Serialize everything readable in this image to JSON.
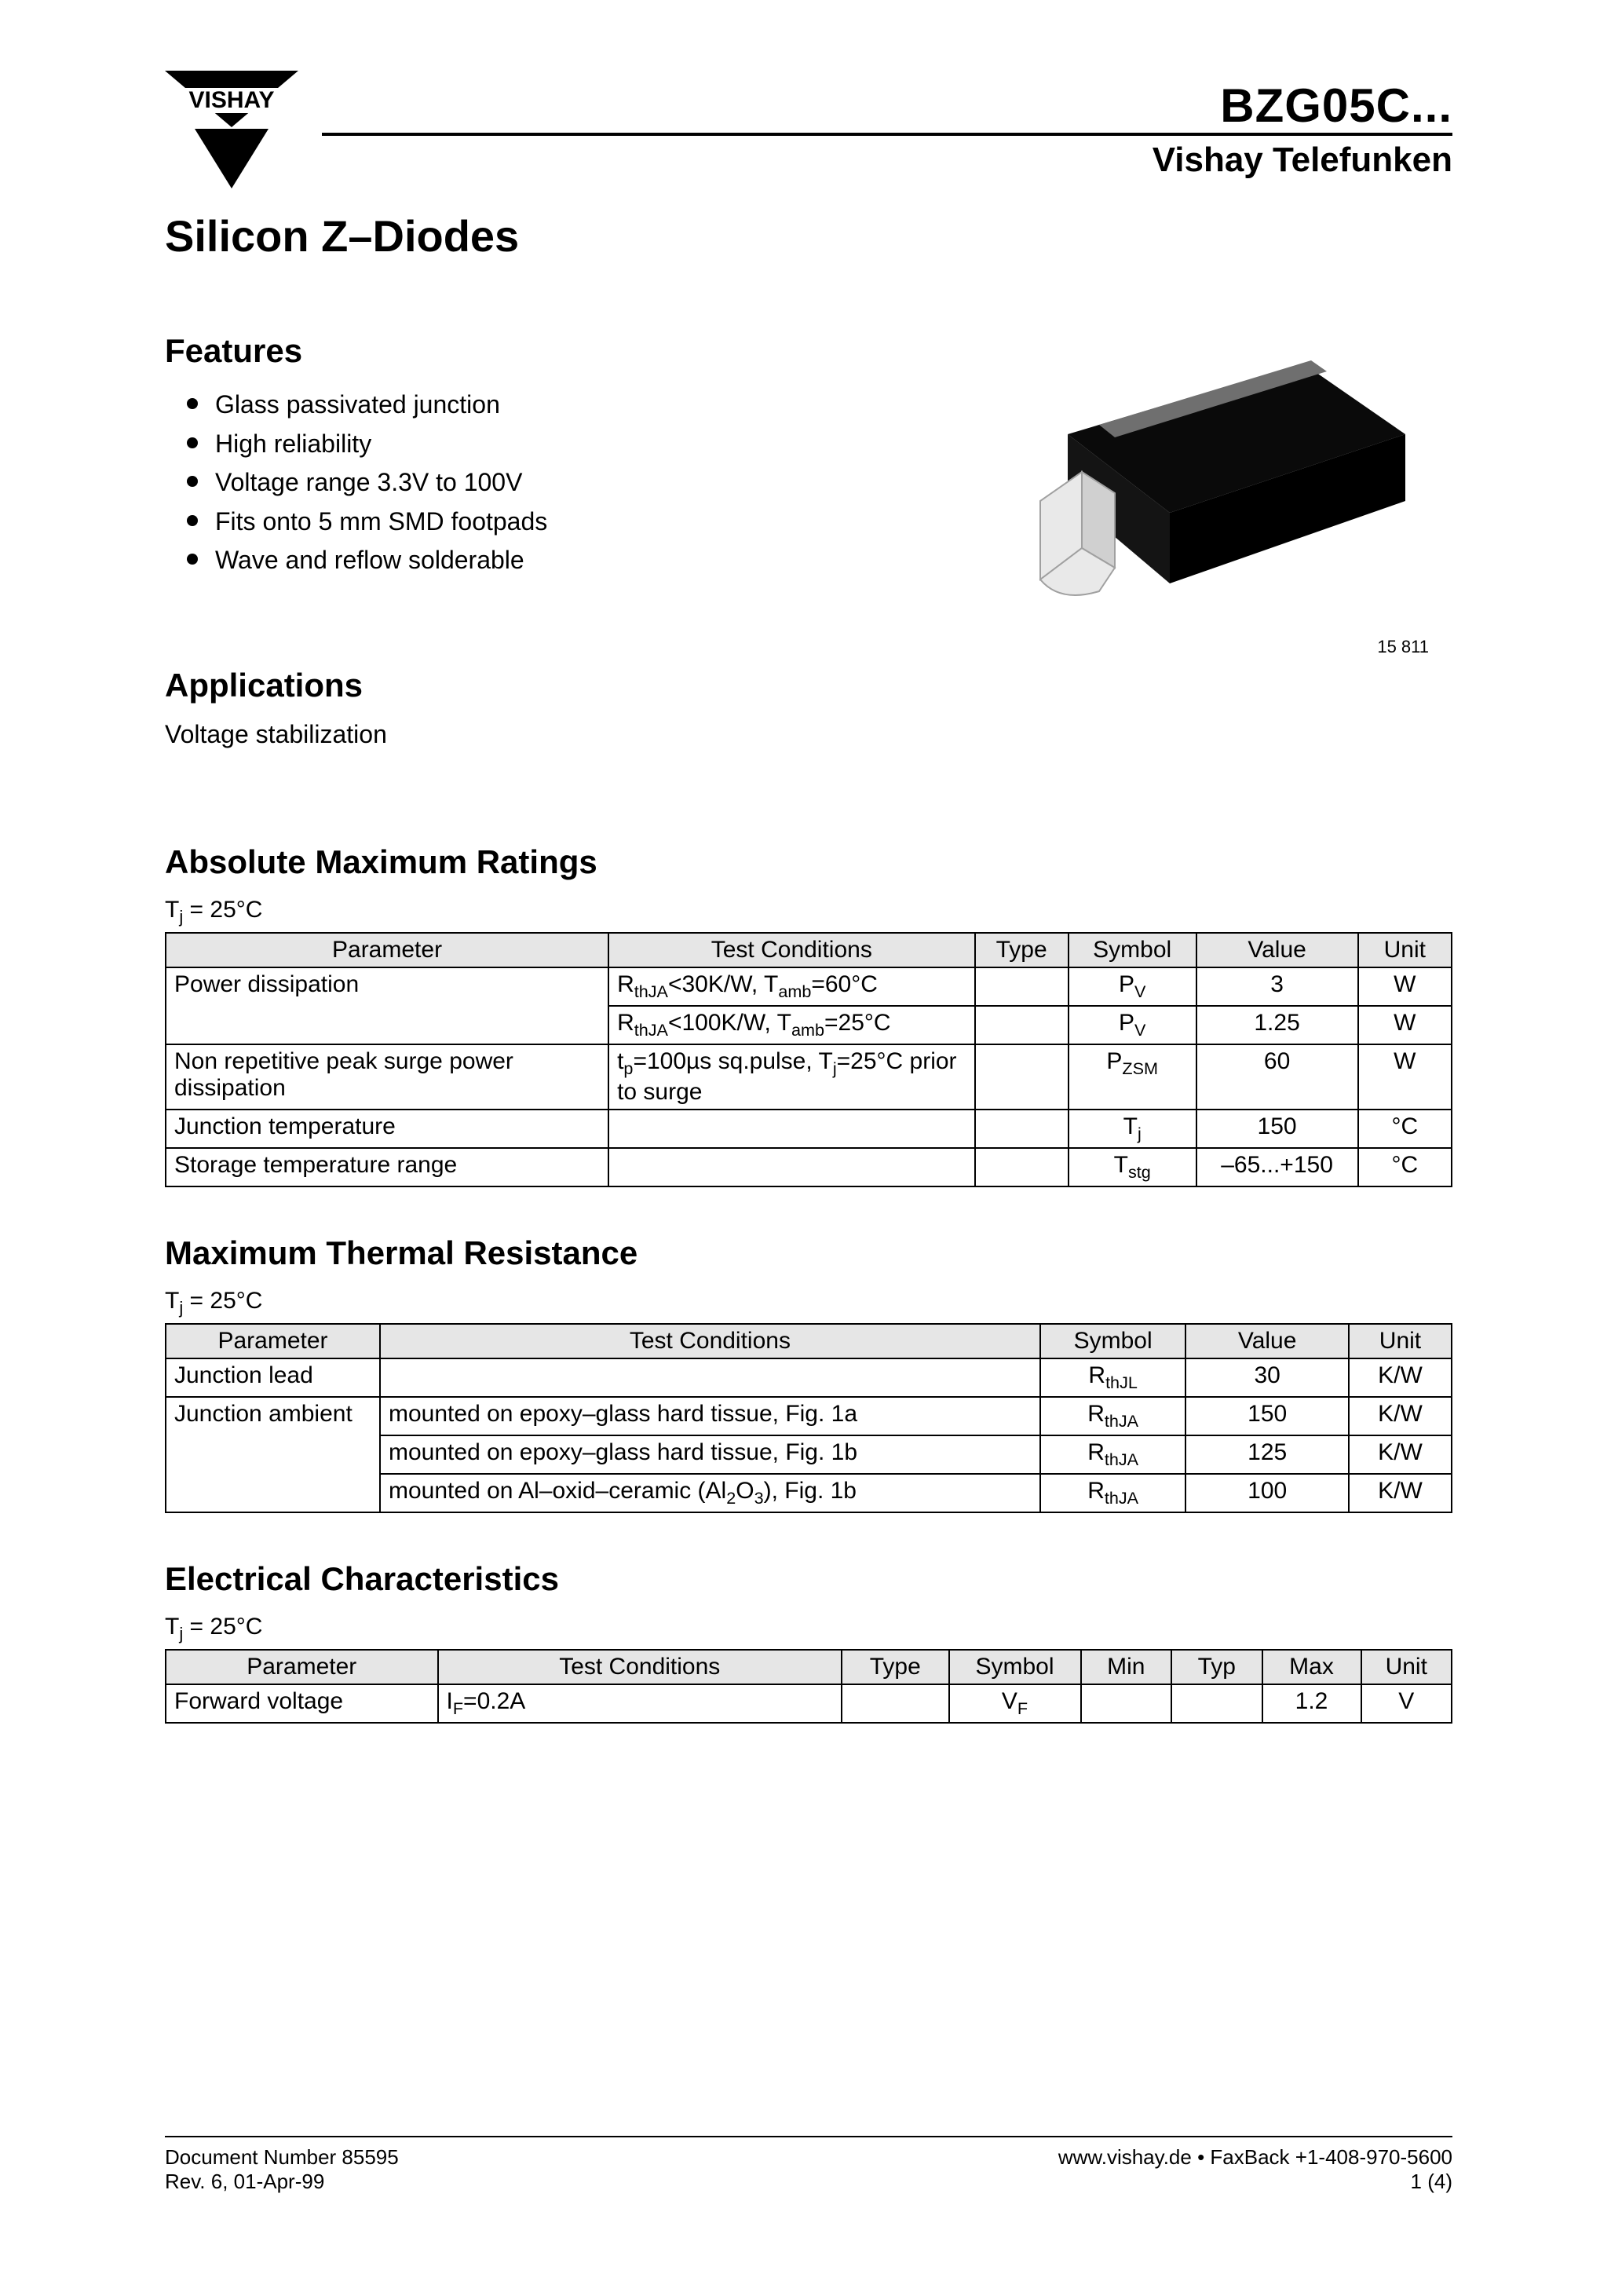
{
  "header": {
    "logo_text": "VISHAY",
    "part_number": "BZG05C...",
    "company": "Vishay Telefunken",
    "main_title": "Silicon Z–Diodes"
  },
  "package_image": {
    "id_text": "15 811",
    "body_color": "#0a0a0a",
    "band_color": "#6f6f6f",
    "lead_color": "#e9e9e9",
    "lead_edge": "#a0a0a0"
  },
  "features": {
    "heading": "Features",
    "items": [
      "Glass passivated junction",
      "High reliability",
      "Voltage range 3.3V to 100V",
      "Fits onto 5 mm SMD footpads",
      "Wave and reflow solderable"
    ]
  },
  "applications": {
    "heading": "Applications",
    "text": "Voltage stabilization"
  },
  "abs_max": {
    "heading": "Absolute Maximum Ratings",
    "condition_html": "T<span class=\"sub\">j</span> = 25°C",
    "columns": [
      "Parameter",
      "Test Conditions",
      "Type",
      "Symbol",
      "Value",
      "Unit"
    ],
    "rows": [
      {
        "param": "Power dissipation",
        "cond_html": "R<span class=\"sub\">thJA</span>&lt;30K/W, T<span class=\"sub\">amb</span>=60<span class=\"deg\"></span>C",
        "type": "",
        "sym_html": "P<span class=\"sub\">V</span>",
        "value": "3",
        "unit": "W",
        "param_rowspan": 2
      },
      {
        "param": "",
        "cond_html": "R<span class=\"sub\">thJA</span>&lt;100K/W, T<span class=\"sub\">amb</span>=25<span class=\"deg\"></span>C",
        "type": "",
        "sym_html": "P<span class=\"sub\">V</span>",
        "value": "1.25",
        "unit": "W"
      },
      {
        "param": "Non repetitive peak surge power dissipation",
        "cond_html": "t<span class=\"sub\">p</span>=100µs sq.pulse, T<span class=\"sub\">j</span>=25<span class=\"deg\"></span>C prior to surge",
        "type": "",
        "sym_html": "P<span class=\"sub\">ZSM</span>",
        "value": "60",
        "unit": "W"
      },
      {
        "param": "Junction temperature",
        "cond_html": "",
        "type": "",
        "sym_html": "T<span class=\"sub\">j</span>",
        "value": "150",
        "unit": "°C"
      },
      {
        "param": "Storage temperature range",
        "cond_html": "",
        "type": "",
        "sym_html": "T<span class=\"sub\">stg</span>",
        "value": "–65...+150",
        "unit": "°C"
      }
    ]
  },
  "thermal": {
    "heading": "Maximum Thermal Resistance",
    "condition_html": "T<span class=\"sub\">j</span> = 25°C",
    "columns": [
      "Parameter",
      "Test Conditions",
      "Symbol",
      "Value",
      "Unit"
    ],
    "rows": [
      {
        "param": "Junction lead",
        "cond_html": "",
        "sym_html": "R<span class=\"sub\">thJL</span>",
        "value": "30",
        "unit": "K/W"
      },
      {
        "param": "Junction ambient",
        "cond_html": "mounted on epoxy–glass hard tissue, Fig. 1a",
        "sym_html": "R<span class=\"sub\">thJA</span>",
        "value": "150",
        "unit": "K/W",
        "param_rowspan": 3
      },
      {
        "param": "",
        "cond_html": "mounted on epoxy–glass hard tissue, Fig. 1b",
        "sym_html": "R<span class=\"sub\">thJA</span>",
        "value": "125",
        "unit": "K/W"
      },
      {
        "param": "",
        "cond_html": "mounted on Al–oxid–ceramic (Al<span class=\"sub\">2</span>O<span class=\"sub\">3</span>), Fig. 1b",
        "sym_html": "R<span class=\"sub\">thJA</span>",
        "value": "100",
        "unit": "K/W"
      }
    ]
  },
  "electrical": {
    "heading": "Electrical Characteristics",
    "condition_html": "T<span class=\"sub\">j</span> = 25°C",
    "columns": [
      "Parameter",
      "Test Conditions",
      "Type",
      "Symbol",
      "Min",
      "Typ",
      "Max",
      "Unit"
    ],
    "rows": [
      {
        "param": "Forward voltage",
        "cond_html": "I<span class=\"sub\">F</span>=0.2A",
        "type": "",
        "sym_html": "V<span class=\"sub\">F</span>",
        "min": "",
        "typ": "",
        "max": "1.2",
        "unit": "V"
      }
    ]
  },
  "footer": {
    "doc_no": "Document Number 85595",
    "rev": "Rev. 6, 01-Apr-99",
    "web": "www.vishay.de • FaxBack +1-408-970-5600",
    "page": "1 (4)"
  },
  "style": {
    "page_bg": "#ffffff",
    "text_color": "#000000",
    "table_header_bg": "#e6e6e6",
    "rule_color": "#000000"
  }
}
